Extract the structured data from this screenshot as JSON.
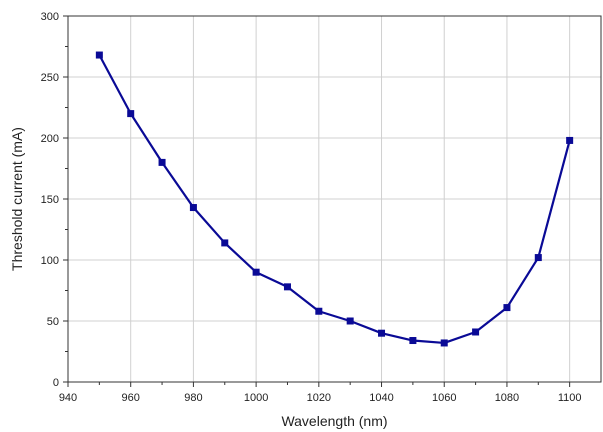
{
  "chart_data": {
    "type": "line",
    "title": "",
    "xlabel": "Wavelength (nm)",
    "ylabel": "Threshold current (mA)",
    "xlim": [
      940,
      1110
    ],
    "ylim": [
      0,
      300
    ],
    "xticks": [
      940,
      960,
      980,
      1000,
      1020,
      1040,
      1060,
      1080,
      1100
    ],
    "yticks": [
      0,
      50,
      100,
      150,
      200,
      250,
      300
    ],
    "grid": true,
    "series": [
      {
        "color": "#0a0a96",
        "marker": "square",
        "x": [
          950,
          960,
          970,
          980,
          990,
          1000,
          1010,
          1020,
          1030,
          1040,
          1050,
          1060,
          1070,
          1080,
          1090,
          1100
        ],
        "y": [
          268,
          220,
          180,
          143,
          114,
          90,
          78,
          58,
          50,
          40,
          34,
          32,
          41,
          61,
          102,
          198
        ]
      }
    ]
  }
}
